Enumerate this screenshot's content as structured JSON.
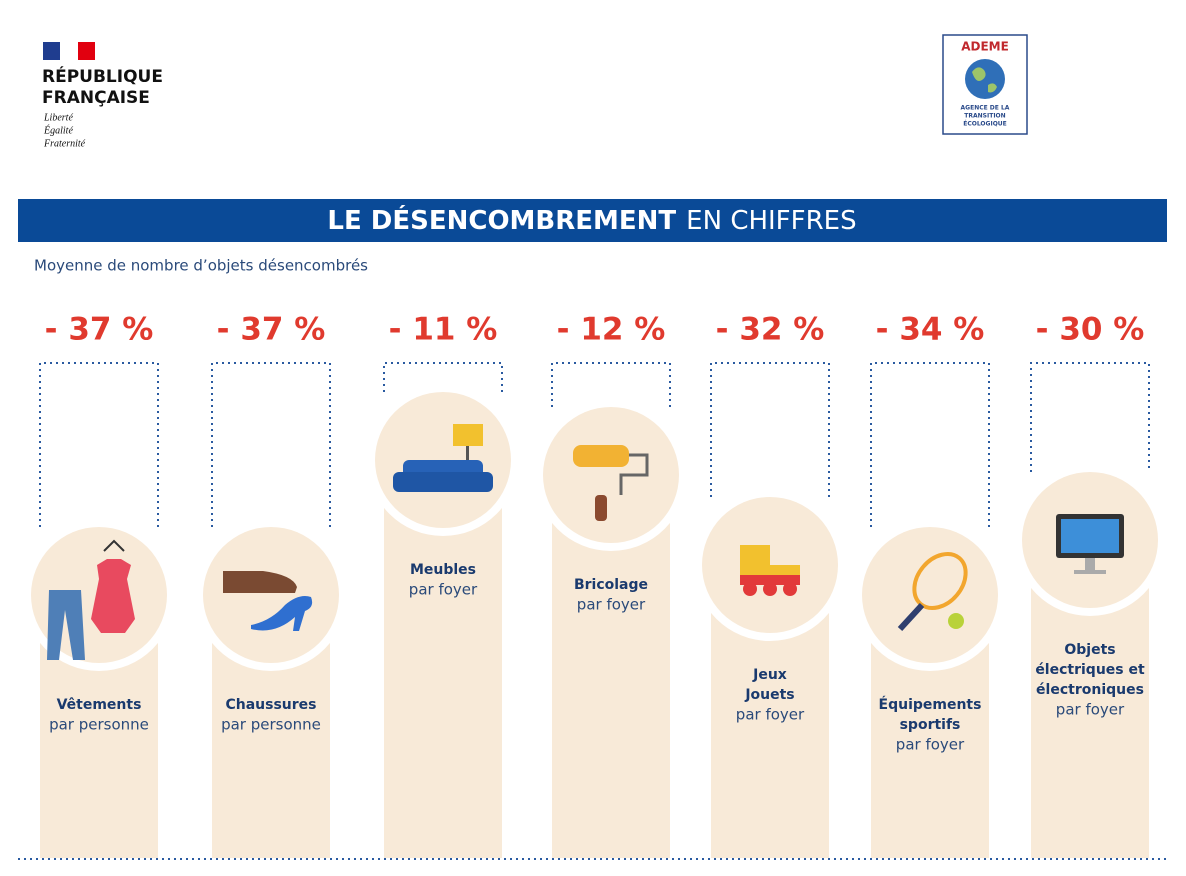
{
  "header": {
    "republique": [
      "RÉPUBLIQUE",
      "FRANÇAISE"
    ],
    "motto": [
      "Liberté",
      "Égalité",
      "Fraternité"
    ],
    "ademe": {
      "name": "ADEME",
      "subtitle": [
        "AGENCE DE LA",
        "TRANSITION",
        "ÉCOLOGIQUE"
      ]
    }
  },
  "banner": {
    "title_bold": "LE DÉSENCOMBREMENT",
    "title_rest": "EN CHIFFRES"
  },
  "subtitle": "Moyenne de nombre d’objets désencombrés",
  "items": [
    {
      "value": "- 37 %",
      "label": [
        "Vêtements"
      ],
      "unit": "par personne"
    },
    {
      "value": "- 37 %",
      "label": [
        "Chaussures"
      ],
      "unit": "par personne"
    },
    {
      "value": "- 11 %",
      "label": [
        "Meubles"
      ],
      "unit": "par foyer"
    },
    {
      "value": "- 12 %",
      "label": [
        "Bricolage"
      ],
      "unit": "par foyer"
    },
    {
      "value": "- 32 %",
      "label": [
        "Jeux",
        "Jouets"
      ],
      "unit": "par foyer"
    },
    {
      "value": "- 34 %",
      "label": [
        "Équipements",
        "sportifs"
      ],
      "unit": "par foyer"
    },
    {
      "value": "- 30 %",
      "label": [
        "Objets",
        "électriques et",
        "électroniques"
      ],
      "unit": "par foyer"
    }
  ]
}
